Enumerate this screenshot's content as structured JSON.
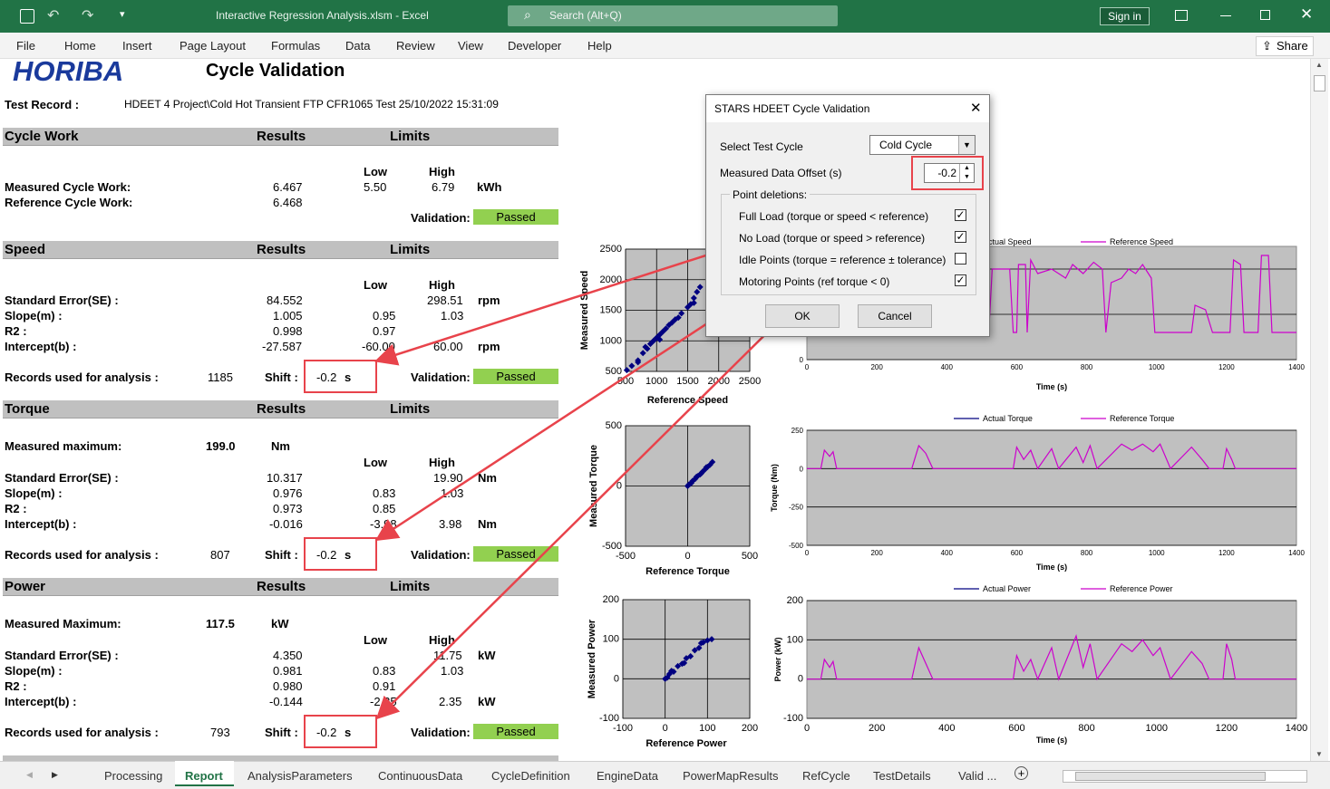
{
  "window": {
    "title": "Interactive Regression Analysis.xlsm  -  Excel",
    "search_placeholder": "Search (Alt+Q)",
    "sign_in": "Sign in"
  },
  "menu": [
    "File",
    "Home",
    "Insert",
    "Page Layout",
    "Formulas",
    "Data",
    "Review",
    "View",
    "Developer",
    "Help"
  ],
  "share_label": "Share",
  "report": {
    "logo": "HORIBA",
    "title": "Cycle Validation",
    "test_record_label": "Test Record :",
    "test_record_value": "HDEET 4 Project\\Cold Hot Transient FTP CFR1065 Test 25/10/2022 15:31:09",
    "results_header": "Results",
    "limits_header": "Limits",
    "low_label": "Low",
    "high_label": "High",
    "validation_label": "Validation:",
    "passed_label": "Passed",
    "shift_label": "Shift :",
    "shift_value": "-0.2",
    "shift_unit": "s",
    "records_label": "Records used for analysis :",
    "cycle_work": {
      "title": "Cycle Work",
      "measured_label": "Measured Cycle Work:",
      "measured_value": "6.467",
      "reference_label": "Reference Cycle Work:",
      "reference_value": "6.468",
      "low": "5.50",
      "high": "6.79",
      "unit": "kWh"
    },
    "speed": {
      "title": "Speed",
      "rows": [
        {
          "label": "Standard Error(SE) :",
          "value": "84.552",
          "low": "",
          "high": "298.51",
          "unit": "rpm"
        },
        {
          "label": "Slope(m) :",
          "value": "1.005",
          "low": "0.95",
          "high": "1.03",
          "unit": ""
        },
        {
          "label": "R2 :",
          "value": "0.998",
          "low": "0.97",
          "high": "",
          "unit": ""
        },
        {
          "label": "Intercept(b) :",
          "value": "-27.587",
          "low": "-60.00",
          "high": "60.00",
          "unit": "rpm"
        }
      ],
      "records": "1185"
    },
    "torque": {
      "title": "Torque",
      "max_label": "Measured maximum:",
      "max_value": "199.0",
      "max_unit": "Nm",
      "rows": [
        {
          "label": "Standard Error(SE) :",
          "value": "10.317",
          "low": "",
          "high": "19.90",
          "unit": "Nm"
        },
        {
          "label": "Slope(m) :",
          "value": "0.976",
          "low": "0.83",
          "high": "1.03",
          "unit": ""
        },
        {
          "label": "R2 :",
          "value": "0.973",
          "low": "0.85",
          "high": "",
          "unit": ""
        },
        {
          "label": "Intercept(b) :",
          "value": "-0.016",
          "low": "-3.98",
          "high": "3.98",
          "unit": "Nm"
        }
      ],
      "records": "807"
    },
    "power": {
      "title": "Power",
      "max_label": "Measured Maximum:",
      "max_value": "117.5",
      "max_unit": "kW",
      "rows": [
        {
          "label": "Standard Error(SE) :",
          "value": "4.350",
          "low": "",
          "high": "11.75",
          "unit": "kW"
        },
        {
          "label": "Slope(m) :",
          "value": "0.981",
          "low": "0.83",
          "high": "1.03",
          "unit": ""
        },
        {
          "label": "R2 :",
          "value": "0.980",
          "low": "0.91",
          "high": "",
          "unit": ""
        },
        {
          "label": "Intercept(b) :",
          "value": "-0.144",
          "low": "-2.35",
          "high": "2.35",
          "unit": "kW"
        }
      ],
      "records": "793"
    }
  },
  "dialog": {
    "title": "STARS HDEET Cycle Validation",
    "select_cycle_label": "Select Test Cycle",
    "select_cycle_value": "Cold Cycle",
    "offset_label": "Measured Data Offset (s)",
    "offset_value": "-0.2",
    "deletions_label": "Point deletions:",
    "options": [
      {
        "label": "Full Load (torque or speed < reference)",
        "checked": true
      },
      {
        "label": "No Load (torque or speed > reference)",
        "checked": true
      },
      {
        "label": "Idle Points (torque = reference ± tolerance)",
        "checked": false
      },
      {
        "label": "Motoring Points (ref torque < 0)",
        "checked": true
      }
    ],
    "ok": "OK",
    "cancel": "Cancel"
  },
  "sheet_tabs": [
    "Processing",
    "Report",
    "AnalysisParameters",
    "ContinuousData",
    "CycleDefinition",
    "EngineData",
    "PowerMapResults",
    "RefCycle",
    "TestDetails",
    "Valid ..."
  ],
  "active_tab": "Report",
  "colors": {
    "excel_green": "#217346",
    "passed": "#92d050",
    "actual": "#000080",
    "reference": "#cc00cc",
    "highlight": "#e8434b",
    "plot_bg": "#c0c0c0"
  },
  "chart_data": [
    {
      "type": "scatter",
      "xlabel": "Reference Speed",
      "ylabel": "Measured Speed",
      "xlim": [
        500,
        2500
      ],
      "ylim": [
        500,
        2500
      ],
      "xticks": [
        "500",
        "1000",
        "1500",
        "2000",
        "2500"
      ],
      "yticks": [
        "500",
        "1000",
        "1500",
        "2000",
        "2500"
      ],
      "points": [
        [
          520,
          520
        ],
        [
          600,
          590
        ],
        [
          700,
          680
        ],
        [
          780,
          800
        ],
        [
          820,
          900
        ],
        [
          900,
          950
        ],
        [
          950,
          1000
        ],
        [
          1000,
          1050
        ],
        [
          1050,
          1100
        ],
        [
          1100,
          1150
        ],
        [
          1150,
          1200
        ],
        [
          1200,
          1260
        ],
        [
          1250,
          1300
        ],
        [
          1300,
          1350
        ],
        [
          1400,
          1450
        ],
        [
          1500,
          1550
        ],
        [
          1550,
          1600
        ],
        [
          1600,
          1700
        ],
        [
          1650,
          1800
        ],
        [
          1700,
          1880
        ],
        [
          700,
          650
        ],
        [
          850,
          870
        ],
        [
          1050,
          1020
        ],
        [
          1350,
          1380
        ],
        [
          1600,
          1620
        ]
      ]
    },
    {
      "type": "line",
      "xlabel": "Time (s)",
      "ylabel": "",
      "xlim": [
        0,
        1400
      ],
      "ylim": [
        0,
        2500
      ],
      "xticks": [
        "0",
        "200",
        "400",
        "600",
        "800",
        "1000",
        "1200",
        "1400"
      ],
      "yticks": [
        "0",
        "1000",
        "2000"
      ],
      "series": [
        {
          "name": "Actual Speed"
        },
        {
          "name": "Reference Speed"
        }
      ],
      "reference": [
        [
          0,
          600
        ],
        [
          20,
          600
        ],
        [
          25,
          1800
        ],
        [
          60,
          1800
        ],
        [
          70,
          600
        ],
        [
          200,
          600
        ],
        [
          300,
          600
        ],
        [
          400,
          600
        ],
        [
          520,
          600
        ],
        [
          530,
          2000
        ],
        [
          580,
          2000
        ],
        [
          590,
          600
        ],
        [
          600,
          600
        ],
        [
          605,
          2100
        ],
        [
          625,
          2100
        ],
        [
          630,
          600
        ],
        [
          640,
          2200
        ],
        [
          660,
          1900
        ],
        [
          700,
          2000
        ],
        [
          740,
          1800
        ],
        [
          760,
          2100
        ],
        [
          790,
          1900
        ],
        [
          820,
          2150
        ],
        [
          845,
          2000
        ],
        [
          855,
          600
        ],
        [
          870,
          1700
        ],
        [
          900,
          1800
        ],
        [
          920,
          2000
        ],
        [
          940,
          1900
        ],
        [
          960,
          2100
        ],
        [
          985,
          1800
        ],
        [
          995,
          600
        ],
        [
          1100,
          600
        ],
        [
          1110,
          1200
        ],
        [
          1140,
          1100
        ],
        [
          1160,
          600
        ],
        [
          1210,
          600
        ],
        [
          1220,
          2200
        ],
        [
          1240,
          2100
        ],
        [
          1250,
          600
        ],
        [
          1290,
          600
        ],
        [
          1300,
          2300
        ],
        [
          1320,
          2300
        ],
        [
          1330,
          600
        ],
        [
          1350,
          600
        ],
        [
          1400,
          600
        ]
      ]
    },
    {
      "type": "scatter",
      "xlabel": "Reference Torque",
      "ylabel": "Measured Torque",
      "xlim": [
        -500,
        500
      ],
      "ylim": [
        -500,
        500
      ],
      "xticks": [
        "-500",
        "0",
        "500"
      ],
      "yticks": [
        "-500",
        "0",
        "500"
      ],
      "points": [
        [
          0,
          0
        ],
        [
          10,
          12
        ],
        [
          20,
          18
        ],
        [
          40,
          42
        ],
        [
          60,
          58
        ],
        [
          80,
          82
        ],
        [
          100,
          96
        ],
        [
          120,
          118
        ],
        [
          140,
          138
        ],
        [
          160,
          158
        ],
        [
          180,
          176
        ],
        [
          199,
          199
        ],
        [
          30,
          25
        ],
        [
          70,
          75
        ],
        [
          110,
          105
        ],
        [
          150,
          155
        ]
      ]
    },
    {
      "type": "line",
      "xlabel": "Time (s)",
      "ylabel": "Torque (Nm)",
      "xlim": [
        0,
        1400
      ],
      "ylim": [
        -500,
        250
      ],
      "xticks": [
        "0",
        "200",
        "400",
        "600",
        "800",
        "1000",
        "1200",
        "1400"
      ],
      "yticks": [
        "-500",
        "-250",
        "0",
        "250"
      ],
      "series": [
        {
          "name": "Actual Torque"
        },
        {
          "name": "Reference Torque"
        }
      ],
      "reference": [
        [
          0,
          0
        ],
        [
          40,
          0
        ],
        [
          50,
          120
        ],
        [
          65,
          80
        ],
        [
          75,
          110
        ],
        [
          85,
          0
        ],
        [
          140,
          0
        ],
        [
          300,
          0
        ],
        [
          320,
          150
        ],
        [
          340,
          100
        ],
        [
          360,
          0
        ],
        [
          590,
          0
        ],
        [
          600,
          140
        ],
        [
          620,
          60
        ],
        [
          640,
          120
        ],
        [
          660,
          0
        ],
        [
          700,
          130
        ],
        [
          720,
          0
        ],
        [
          770,
          140
        ],
        [
          790,
          40
        ],
        [
          810,
          150
        ],
        [
          830,
          0
        ],
        [
          900,
          160
        ],
        [
          930,
          120
        ],
        [
          960,
          160
        ],
        [
          990,
          110
        ],
        [
          1010,
          160
        ],
        [
          1040,
          0
        ],
        [
          1100,
          140
        ],
        [
          1130,
          60
        ],
        [
          1150,
          0
        ],
        [
          1190,
          0
        ],
        [
          1200,
          130
        ],
        [
          1215,
          60
        ],
        [
          1225,
          0
        ],
        [
          1400,
          0
        ]
      ]
    },
    {
      "type": "scatter",
      "xlabel": "Reference Power",
      "ylabel": "Measured Power",
      "xlim": [
        -100,
        200
      ],
      "ylim": [
        -100,
        200
      ],
      "xticks": [
        "-100",
        "0",
        "100",
        "200"
      ],
      "yticks": [
        "-100",
        "0",
        "100",
        "200"
      ],
      "points": [
        [
          0,
          0
        ],
        [
          5,
          3
        ],
        [
          10,
          12
        ],
        [
          20,
          18
        ],
        [
          30,
          32
        ],
        [
          40,
          38
        ],
        [
          50,
          52
        ],
        [
          60,
          57
        ],
        [
          70,
          72
        ],
        [
          80,
          78
        ],
        [
          90,
          92
        ],
        [
          100,
          97
        ],
        [
          110,
          100
        ],
        [
          15,
          20
        ],
        [
          45,
          40
        ],
        [
          85,
          90
        ]
      ]
    },
    {
      "type": "line",
      "xlabel": "Time (s)",
      "ylabel": "Power (kW)",
      "xlim": [
        0,
        1400
      ],
      "ylim": [
        -100,
        200
      ],
      "xticks": [
        "0",
        "200",
        "400",
        "600",
        "800",
        "1000",
        "1200",
        "1400"
      ],
      "yticks": [
        "-100",
        "0",
        "100",
        "200"
      ],
      "series": [
        {
          "name": "Actual Power"
        },
        {
          "name": "Reference Power"
        }
      ],
      "reference": [
        [
          0,
          0
        ],
        [
          40,
          0
        ],
        [
          50,
          50
        ],
        [
          65,
          30
        ],
        [
          75,
          45
        ],
        [
          85,
          0
        ],
        [
          200,
          0
        ],
        [
          300,
          0
        ],
        [
          320,
          80
        ],
        [
          340,
          40
        ],
        [
          360,
          0
        ],
        [
          590,
          0
        ],
        [
          600,
          60
        ],
        [
          620,
          20
        ],
        [
          640,
          50
        ],
        [
          660,
          0
        ],
        [
          700,
          80
        ],
        [
          720,
          0
        ],
        [
          770,
          110
        ],
        [
          790,
          30
        ],
        [
          810,
          90
        ],
        [
          830,
          0
        ],
        [
          900,
          90
        ],
        [
          930,
          70
        ],
        [
          960,
          100
        ],
        [
          990,
          60
        ],
        [
          1010,
          80
        ],
        [
          1040,
          0
        ],
        [
          1100,
          70
        ],
        [
          1130,
          40
        ],
        [
          1150,
          0
        ],
        [
          1190,
          0
        ],
        [
          1200,
          90
        ],
        [
          1215,
          50
        ],
        [
          1225,
          0
        ],
        [
          1400,
          0
        ]
      ]
    }
  ]
}
